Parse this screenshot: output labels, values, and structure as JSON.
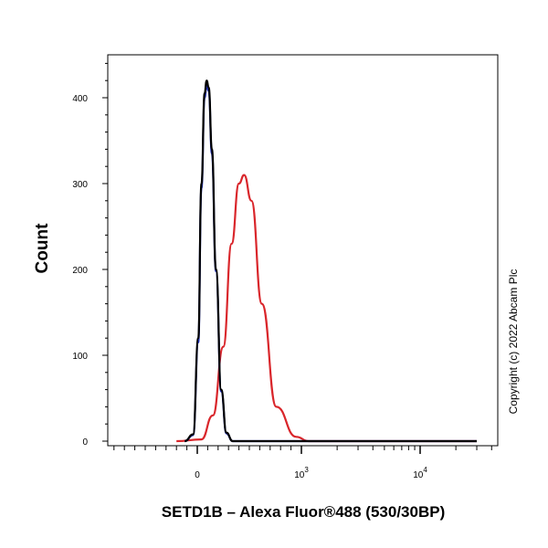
{
  "chart_data": {
    "type": "line",
    "xlabel": "SETD1B – Alexa Fluor®488 (530/30BP)",
    "ylabel": "Count",
    "ylim": [
      0,
      450
    ],
    "x_scale": "biexponential",
    "x_ticks": [
      {
        "base": "0",
        "exp": ""
      },
      {
        "base": "10",
        "exp": "3"
      },
      {
        "base": "10",
        "exp": "4"
      }
    ],
    "y_ticks": [
      "0",
      "100",
      "200",
      "300",
      "400"
    ],
    "grid": false,
    "legend": "none",
    "series": [
      {
        "color": "#000000",
        "points": [
          [
            -120,
            0
          ],
          [
            -40,
            8
          ],
          [
            10,
            120
          ],
          [
            40,
            300
          ],
          [
            70,
            405
          ],
          [
            90,
            420
          ],
          [
            110,
            412
          ],
          [
            140,
            340
          ],
          [
            180,
            200
          ],
          [
            230,
            60
          ],
          [
            280,
            10
          ],
          [
            340,
            0
          ],
          [
            30000,
            0
          ]
        ]
      },
      {
        "color": "#1f2fb5",
        "points": [
          [
            -120,
            0
          ],
          [
            -40,
            7
          ],
          [
            10,
            115
          ],
          [
            40,
            295
          ],
          [
            70,
            400
          ],
          [
            90,
            414
          ],
          [
            110,
            408
          ],
          [
            140,
            335
          ],
          [
            180,
            198
          ],
          [
            230,
            58
          ],
          [
            280,
            9
          ],
          [
            340,
            0
          ],
          [
            30000,
            0
          ]
        ]
      },
      {
        "color": "#d9262b",
        "points": [
          [
            -200,
            0
          ],
          [
            40,
            2
          ],
          [
            150,
            30
          ],
          [
            250,
            110
          ],
          [
            330,
            230
          ],
          [
            400,
            300
          ],
          [
            450,
            310
          ],
          [
            520,
            280
          ],
          [
            620,
            160
          ],
          [
            760,
            40
          ],
          [
            950,
            5
          ],
          [
            1150,
            0
          ],
          [
            30000,
            0
          ]
        ]
      }
    ]
  },
  "copyright": "Copyright (c) 2022 Abcam Plc"
}
